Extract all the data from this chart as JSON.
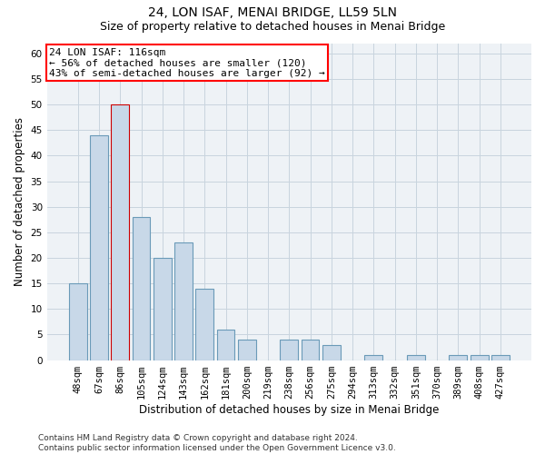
{
  "title": "24, LON ISAF, MENAI BRIDGE, LL59 5LN",
  "subtitle": "Size of property relative to detached houses in Menai Bridge",
  "xlabel": "Distribution of detached houses by size in Menai Bridge",
  "ylabel": "Number of detached properties",
  "categories": [
    "48sqm",
    "67sqm",
    "86sqm",
    "105sqm",
    "124sqm",
    "143sqm",
    "162sqm",
    "181sqm",
    "200sqm",
    "219sqm",
    "238sqm",
    "256sqm",
    "275sqm",
    "294sqm",
    "313sqm",
    "332sqm",
    "351sqm",
    "370sqm",
    "389sqm",
    "408sqm",
    "427sqm"
  ],
  "values": [
    15,
    44,
    50,
    28,
    20,
    23,
    14,
    6,
    4,
    0,
    4,
    4,
    3,
    0,
    1,
    0,
    1,
    0,
    1,
    1,
    1
  ],
  "bar_color": "#c8d8e8",
  "bar_edge_color": "#6a9ab8",
  "highlight_bar_index": 2,
  "highlight_edge_color": "#cc0000",
  "annotation_line1": "24 LON ISAF: 116sqm",
  "annotation_line2": "← 56% of detached houses are smaller (120)",
  "annotation_line3": "43% of semi-detached houses are larger (92) →",
  "annotation_box_edge_color": "red",
  "annotation_box_face_color": "white",
  "ylim": [
    0,
    62
  ],
  "yticks": [
    0,
    5,
    10,
    15,
    20,
    25,
    30,
    35,
    40,
    45,
    50,
    55,
    60
  ],
  "grid_color": "#c8d4de",
  "background_color": "#eef2f6",
  "footer_line1": "Contains HM Land Registry data © Crown copyright and database right 2024.",
  "footer_line2": "Contains public sector information licensed under the Open Government Licence v3.0.",
  "title_fontsize": 10,
  "subtitle_fontsize": 9,
  "xlabel_fontsize": 8.5,
  "ylabel_fontsize": 8.5,
  "tick_fontsize": 7.5,
  "annotation_fontsize": 8,
  "footer_fontsize": 6.5
}
